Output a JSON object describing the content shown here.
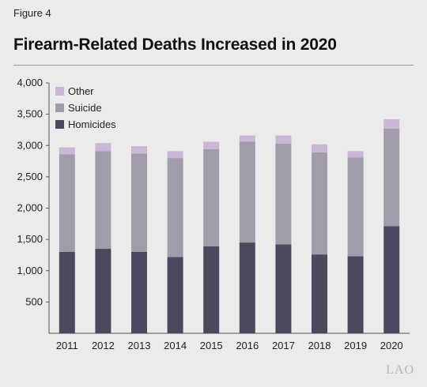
{
  "figure_label": "Figure 4",
  "watermark": "LAO",
  "chart_data": {
    "type": "bar",
    "stacked": true,
    "title": "Firearm-Related Deaths Increased in 2020",
    "categories": [
      "2011",
      "2012",
      "2013",
      "2014",
      "2015",
      "2016",
      "2017",
      "2018",
      "2019",
      "2020"
    ],
    "series": [
      {
        "name": "Homicides",
        "color": "#4b4a5d",
        "values": [
          1300,
          1350,
          1300,
          1220,
          1390,
          1450,
          1420,
          1260,
          1230,
          1710
        ]
      },
      {
        "name": "Suicide",
        "color": "#a09ca8",
        "values": [
          1560,
          1560,
          1570,
          1580,
          1550,
          1610,
          1610,
          1630,
          1580,
          1560
        ]
      },
      {
        "name": "Other",
        "color": "#c9b8d3",
        "values": [
          110,
          130,
          120,
          110,
          120,
          100,
          130,
          130,
          100,
          150
        ]
      }
    ],
    "ylim": [
      0,
      4000
    ],
    "yticks": [
      500,
      1000,
      1500,
      2000,
      2500,
      3000,
      3500,
      4000
    ],
    "ytick_labels": [
      "500",
      "1,000",
      "1,500",
      "2,000",
      "2,500",
      "3,000",
      "3,500",
      "4,000"
    ],
    "legend_order": [
      "Other",
      "Suicide",
      "Homicides"
    ],
    "legend_position": "top-left",
    "grid": false
  }
}
